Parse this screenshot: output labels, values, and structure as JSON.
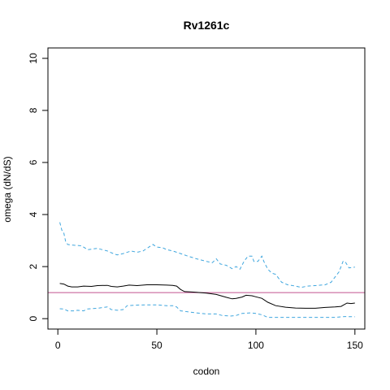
{
  "chart_data": {
    "type": "line",
    "title": "Rv1261c",
    "xlabel": "codon",
    "ylabel": "omega (dN/dS)",
    "xlim": [
      -5,
      155
    ],
    "ylim": [
      -0.4,
      10.4
    ],
    "x_ticks": [
      0,
      50,
      100,
      150
    ],
    "y_ticks": [
      0,
      2,
      4,
      6,
      8,
      10
    ],
    "grid": false,
    "legend": "none",
    "reference_line": {
      "y": 1,
      "color": "#c0508f"
    },
    "series": [
      {
        "style": "solid",
        "color": "#000000",
        "points": [
          [
            1,
            1.35
          ],
          [
            3,
            1.33
          ],
          [
            5,
            1.25
          ],
          [
            7,
            1.22
          ],
          [
            10,
            1.22
          ],
          [
            13,
            1.25
          ],
          [
            17,
            1.24
          ],
          [
            20,
            1.27
          ],
          [
            25,
            1.28
          ],
          [
            27,
            1.24
          ],
          [
            30,
            1.22
          ],
          [
            33,
            1.25
          ],
          [
            36,
            1.29
          ],
          [
            40,
            1.27
          ],
          [
            45,
            1.3
          ],
          [
            50,
            1.3
          ],
          [
            55,
            1.29
          ],
          [
            58,
            1.28
          ],
          [
            60,
            1.25
          ],
          [
            62,
            1.12
          ],
          [
            64,
            1.04
          ],
          [
            67,
            1.03
          ],
          [
            70,
            1.01
          ],
          [
            75,
            0.98
          ],
          [
            80,
            0.93
          ],
          [
            85,
            0.82
          ],
          [
            88,
            0.76
          ],
          [
            90,
            0.78
          ],
          [
            93,
            0.83
          ],
          [
            95,
            0.9
          ],
          [
            98,
            0.88
          ],
          [
            100,
            0.84
          ],
          [
            103,
            0.78
          ],
          [
            106,
            0.63
          ],
          [
            110,
            0.5
          ],
          [
            115,
            0.44
          ],
          [
            120,
            0.41
          ],
          [
            125,
            0.4
          ],
          [
            130,
            0.4
          ],
          [
            135,
            0.43
          ],
          [
            140,
            0.45
          ],
          [
            143,
            0.47
          ],
          [
            146,
            0.6
          ],
          [
            148,
            0.58
          ],
          [
            150,
            0.6
          ]
        ]
      },
      {
        "style": "dashed",
        "color": "#3fa6de",
        "points": [
          [
            1,
            3.7
          ],
          [
            2,
            3.4
          ],
          [
            3,
            3.3
          ],
          [
            4,
            2.95
          ],
          [
            5,
            2.85
          ],
          [
            8,
            2.82
          ],
          [
            12,
            2.8
          ],
          [
            15,
            2.65
          ],
          [
            20,
            2.7
          ],
          [
            25,
            2.6
          ],
          [
            28,
            2.5
          ],
          [
            30,
            2.45
          ],
          [
            33,
            2.5
          ],
          [
            37,
            2.6
          ],
          [
            40,
            2.55
          ],
          [
            43,
            2.6
          ],
          [
            46,
            2.75
          ],
          [
            48,
            2.85
          ],
          [
            50,
            2.75
          ],
          [
            53,
            2.72
          ],
          [
            55,
            2.65
          ],
          [
            58,
            2.6
          ],
          [
            62,
            2.5
          ],
          [
            65,
            2.42
          ],
          [
            70,
            2.3
          ],
          [
            75,
            2.2
          ],
          [
            78,
            2.15
          ],
          [
            80,
            2.3
          ],
          [
            82,
            2.1
          ],
          [
            85,
            2.05
          ],
          [
            88,
            1.92
          ],
          [
            90,
            2.0
          ],
          [
            92,
            1.9
          ],
          [
            94,
            2.2
          ],
          [
            96,
            2.4
          ],
          [
            98,
            2.4
          ],
          [
            99,
            2.2
          ],
          [
            101,
            2.2
          ],
          [
            103,
            2.4
          ],
          [
            104,
            2.2
          ],
          [
            106,
            1.9
          ],
          [
            108,
            1.75
          ],
          [
            110,
            1.7
          ],
          [
            113,
            1.4
          ],
          [
            116,
            1.3
          ],
          [
            120,
            1.25
          ],
          [
            123,
            1.2
          ],
          [
            126,
            1.25
          ],
          [
            130,
            1.27
          ],
          [
            135,
            1.3
          ],
          [
            138,
            1.4
          ],
          [
            140,
            1.6
          ],
          [
            142,
            1.8
          ],
          [
            144,
            2.2
          ],
          [
            145,
            2.2
          ],
          [
            147,
            1.95
          ],
          [
            150,
            1.98
          ]
        ]
      },
      {
        "style": "dashed",
        "color": "#3fa6de",
        "points": [
          [
            1,
            0.38
          ],
          [
            3,
            0.37
          ],
          [
            5,
            0.3
          ],
          [
            8,
            0.3
          ],
          [
            10,
            0.32
          ],
          [
            13,
            0.3
          ],
          [
            15,
            0.37
          ],
          [
            20,
            0.4
          ],
          [
            25,
            0.45
          ],
          [
            27,
            0.35
          ],
          [
            30,
            0.32
          ],
          [
            33,
            0.35
          ],
          [
            35,
            0.5
          ],
          [
            40,
            0.52
          ],
          [
            45,
            0.53
          ],
          [
            50,
            0.53
          ],
          [
            55,
            0.5
          ],
          [
            58,
            0.5
          ],
          [
            60,
            0.45
          ],
          [
            62,
            0.3
          ],
          [
            64,
            0.28
          ],
          [
            67,
            0.25
          ],
          [
            70,
            0.22
          ],
          [
            75,
            0.18
          ],
          [
            80,
            0.18
          ],
          [
            83,
            0.12
          ],
          [
            87,
            0.1
          ],
          [
            90,
            0.12
          ],
          [
            93,
            0.2
          ],
          [
            97,
            0.22
          ],
          [
            100,
            0.2
          ],
          [
            103,
            0.15
          ],
          [
            106,
            0.05
          ],
          [
            110,
            0.05
          ],
          [
            120,
            0.05
          ],
          [
            130,
            0.05
          ],
          [
            140,
            0.05
          ],
          [
            145,
            0.08
          ],
          [
            150,
            0.07
          ]
        ]
      }
    ]
  }
}
